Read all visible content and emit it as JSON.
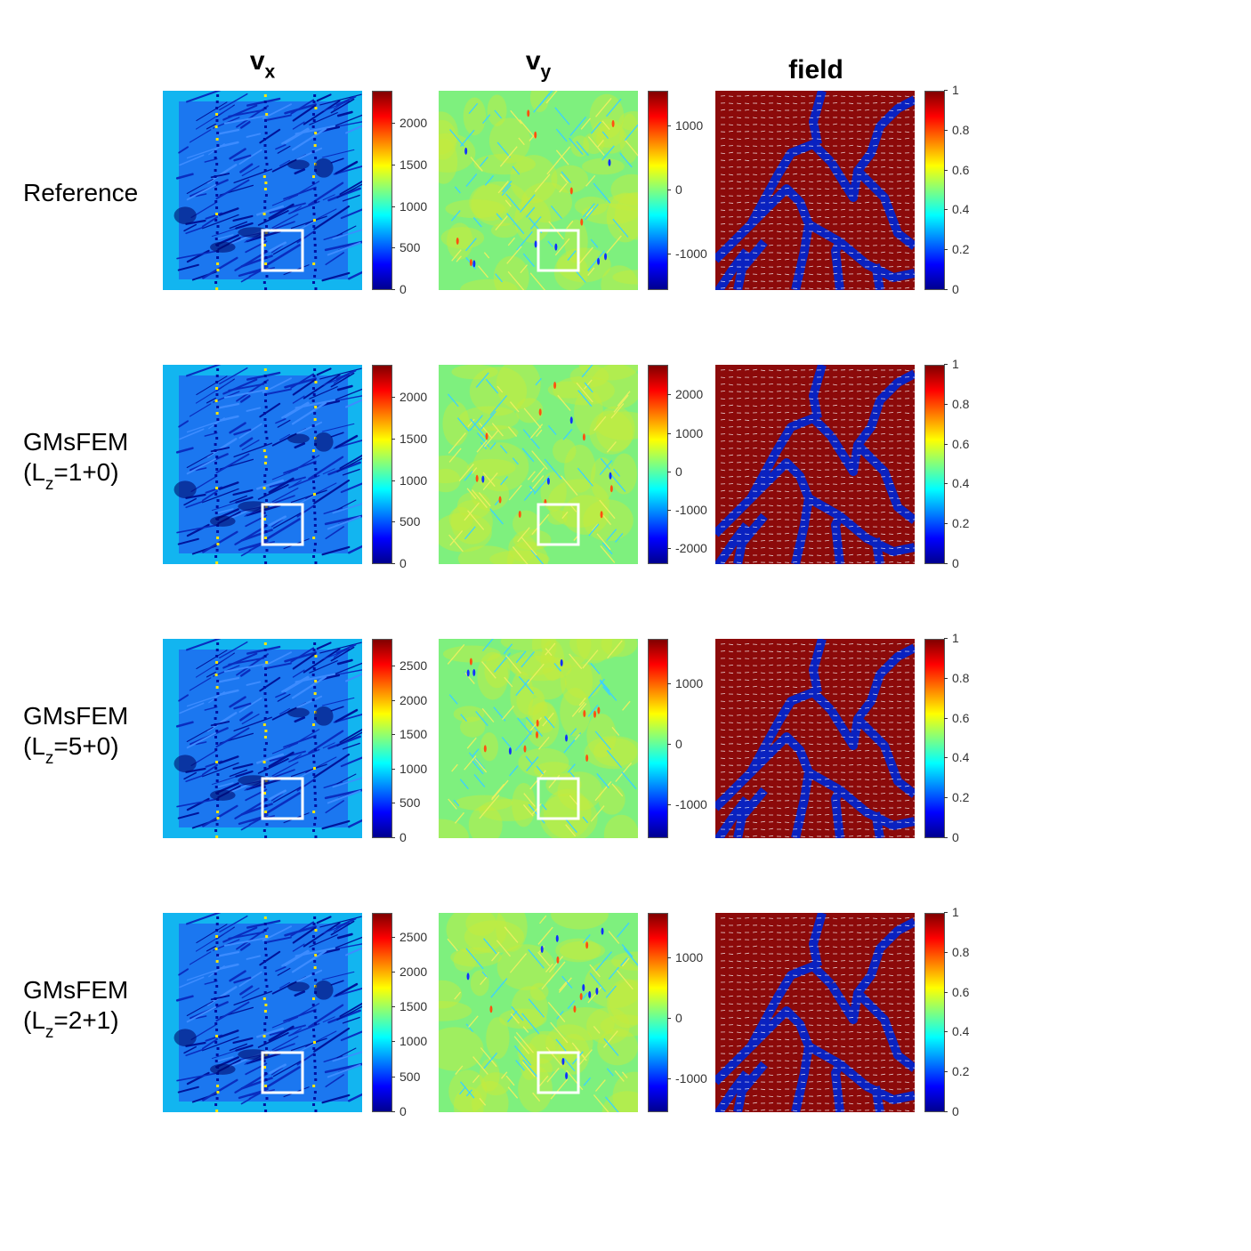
{
  "columns": [
    {
      "main": "v",
      "sub": "x"
    },
    {
      "main": "v",
      "sub": "y"
    },
    {
      "main": "field",
      "sub": ""
    }
  ],
  "rows": [
    {
      "label_line1": "Reference",
      "label_line2": "",
      "label_line2_pre": "",
      "label_line2_sub": "",
      "label_line2_post": ""
    },
    {
      "label_line1": "GMsFEM",
      "label_line2_pre": "(L",
      "label_line2_sub": "z",
      "label_line2_post": "=1+0)"
    },
    {
      "label_line1": "GMsFEM",
      "label_line2_pre": "(L",
      "label_line2_sub": "z",
      "label_line2_post": "=5+0)"
    },
    {
      "label_line1": "GMsFEM",
      "label_line2_pre": "(L",
      "label_line2_sub": "z",
      "label_line2_post": "=2+1)"
    }
  ],
  "chart_data": [
    {
      "type": "heatmap",
      "row": "Reference",
      "column": "vx",
      "colormap": "jet",
      "clim": [
        0,
        2400
      ],
      "colorbar_ticks": [
        "0",
        "500",
        "1000",
        "1500",
        "2000"
      ],
      "colorbar_values": [
        0,
        500,
        1000,
        1500,
        2000
      ],
      "highlight_box": true
    },
    {
      "type": "heatmap",
      "row": "Reference",
      "column": "vy",
      "colormap": "jet",
      "clim": [
        -1550,
        1550
      ],
      "colorbar_ticks": [
        "-1000",
        "0",
        "1000"
      ],
      "colorbar_values": [
        -1000,
        0,
        1000
      ],
      "highlight_box": true
    },
    {
      "type": "heatmap",
      "row": "Reference",
      "column": "field",
      "colormap": "jet",
      "clim": [
        0,
        1
      ],
      "colorbar_ticks": [
        "0",
        "0.2",
        "0.4",
        "0.6",
        "0.8",
        "1"
      ],
      "colorbar_values": [
        0,
        0.2,
        0.4,
        0.6,
        0.8,
        1
      ],
      "overlay": "velocity quiver (white arrows)"
    },
    {
      "type": "heatmap",
      "row": "GMsFEM (Lz=1+0)",
      "column": "vx",
      "colormap": "jet",
      "clim": [
        0,
        2400
      ],
      "colorbar_ticks": [
        "0",
        "500",
        "1000",
        "1500",
        "2000"
      ],
      "colorbar_values": [
        0,
        500,
        1000,
        1500,
        2000
      ],
      "highlight_box": true
    },
    {
      "type": "heatmap",
      "row": "GMsFEM (Lz=1+0)",
      "column": "vy",
      "colormap": "jet",
      "clim": [
        -2400,
        2800
      ],
      "colorbar_ticks": [
        "-2000",
        "-1000",
        "0",
        "1000",
        "2000"
      ],
      "colorbar_values": [
        -2000,
        -1000,
        0,
        1000,
        2000
      ],
      "highlight_box": true
    },
    {
      "type": "heatmap",
      "row": "GMsFEM (Lz=1+0)",
      "column": "field",
      "colormap": "jet",
      "clim": [
        0,
        1
      ],
      "colorbar_ticks": [
        "0",
        "0.2",
        "0.4",
        "0.6",
        "0.8",
        "1"
      ],
      "colorbar_values": [
        0,
        0.2,
        0.4,
        0.6,
        0.8,
        1
      ],
      "overlay": "velocity quiver (white arrows)"
    },
    {
      "type": "heatmap",
      "row": "GMsFEM (Lz=5+0)",
      "column": "vx",
      "colormap": "jet",
      "clim": [
        0,
        2900
      ],
      "colorbar_ticks": [
        "0",
        "500",
        "1000",
        "1500",
        "2000",
        "2500"
      ],
      "colorbar_values": [
        0,
        500,
        1000,
        1500,
        2000,
        2500
      ],
      "highlight_box": true
    },
    {
      "type": "heatmap",
      "row": "GMsFEM (Lz=5+0)",
      "column": "vy",
      "colormap": "jet",
      "clim": [
        -1550,
        1750
      ],
      "colorbar_ticks": [
        "-1000",
        "0",
        "1000"
      ],
      "colorbar_values": [
        -1000,
        0,
        1000
      ],
      "highlight_box": true
    },
    {
      "type": "heatmap",
      "row": "GMsFEM (Lz=5+0)",
      "column": "field",
      "colormap": "jet",
      "clim": [
        0,
        1
      ],
      "colorbar_ticks": [
        "0",
        "0.2",
        "0.4",
        "0.6",
        "0.8",
        "1"
      ],
      "colorbar_values": [
        0,
        0.2,
        0.4,
        0.6,
        0.8,
        1
      ],
      "overlay": "velocity quiver (white arrows)"
    },
    {
      "type": "heatmap",
      "row": "GMsFEM (Lz=2+1)",
      "column": "vx",
      "colormap": "jet",
      "clim": [
        0,
        2850
      ],
      "colorbar_ticks": [
        "0",
        "500",
        "1000",
        "1500",
        "2000",
        "2500"
      ],
      "colorbar_values": [
        0,
        500,
        1000,
        1500,
        2000,
        2500
      ],
      "highlight_box": true
    },
    {
      "type": "heatmap",
      "row": "GMsFEM (Lz=2+1)",
      "column": "vy",
      "colormap": "jet",
      "clim": [
        -1550,
        1750
      ],
      "colorbar_ticks": [
        "-1000",
        "0",
        "1000"
      ],
      "colorbar_values": [
        -1000,
        0,
        1000
      ],
      "highlight_box": true
    },
    {
      "type": "heatmap",
      "row": "GMsFEM (Lz=2+1)",
      "column": "field",
      "colormap": "jet",
      "clim": [
        0,
        1
      ],
      "colorbar_ticks": [
        "0",
        "0.2",
        "0.4",
        "0.6",
        "0.8",
        "1"
      ],
      "colorbar_values": [
        0,
        0.2,
        0.4,
        0.6,
        0.8,
        1
      ],
      "overlay": "velocity quiver (white arrows)"
    }
  ]
}
